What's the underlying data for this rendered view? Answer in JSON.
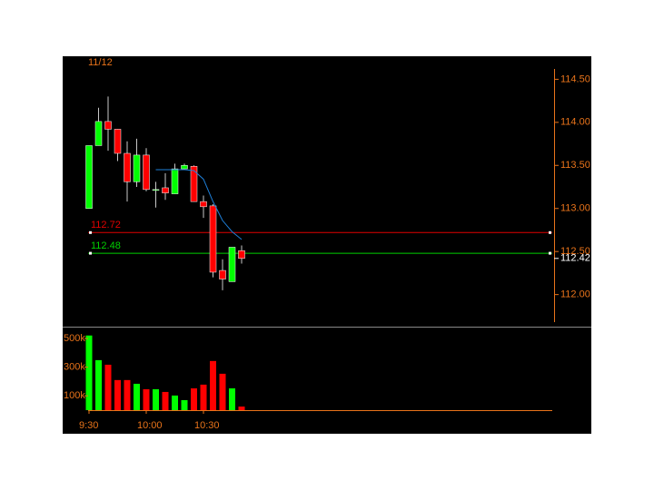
{
  "chart_data": [
    {
      "type": "candlestick",
      "date": "11/12",
      "open": [
        113.0,
        113.73,
        114.01,
        113.92,
        113.64,
        113.31,
        113.62,
        113.22,
        113.24,
        113.17,
        113.46,
        113.49,
        113.08,
        113.03,
        112.28,
        112.15,
        112.51
      ],
      "high": [
        113.73,
        114.17,
        114.3,
        113.92,
        113.78,
        113.81,
        113.7,
        113.31,
        113.41,
        113.52,
        113.52,
        113.5,
        113.15,
        113.05,
        112.41,
        112.55,
        112.57
      ],
      "low": [
        113.0,
        113.73,
        113.67,
        113.55,
        113.08,
        113.25,
        113.2,
        113.01,
        113.1,
        113.17,
        113.46,
        113.08,
        112.89,
        112.2,
        112.05,
        112.15,
        112.36
      ],
      "close": [
        113.73,
        114.01,
        113.92,
        113.64,
        113.31,
        113.62,
        113.22,
        113.22,
        113.18,
        113.46,
        113.5,
        113.08,
        113.02,
        112.26,
        112.18,
        112.55,
        112.42
      ],
      "up_color": "#00ff00",
      "down_color": "#ff0000",
      "moving_average": {
        "color": "#1e7fd8",
        "values": [
          null,
          null,
          null,
          null,
          null,
          null,
          null,
          113.45,
          113.45,
          113.45,
          113.45,
          113.44,
          113.34,
          113.08,
          112.86,
          112.73,
          112.64
        ]
      },
      "level_lines": [
        {
          "value": 112.72,
          "color": "#e00000"
        },
        {
          "value": 112.48,
          "color": "#00d000"
        }
      ],
      "last_price": 112.42,
      "ylim": [
        111.68,
        114.62
      ],
      "yticks": [
        {
          "value": 114.5,
          "label": "114.50"
        },
        {
          "value": 114.0,
          "label": "114.00"
        },
        {
          "value": 113.5,
          "label": "113.50"
        },
        {
          "value": 113.0,
          "label": "113.00"
        },
        {
          "value": 112.5,
          "label": "112.50"
        },
        {
          "value": 112.0,
          "label": "112.00"
        }
      ]
    },
    {
      "type": "bar",
      "categories": [
        "9:30",
        null,
        null,
        null,
        null,
        null,
        "10:00",
        null,
        null,
        null,
        null,
        null,
        "10:30",
        null,
        null,
        null,
        null
      ],
      "values": [
        521000,
        349000,
        317000,
        210000,
        210000,
        184000,
        146000,
        146000,
        127000,
        102000,
        70000,
        152000,
        178000,
        343000,
        254000,
        152000,
        25000
      ],
      "ylim": [
        0,
        570000
      ],
      "yticks": [
        {
          "value": 500000,
          "label": "500k"
        },
        {
          "value": 300000,
          "label": "300k"
        },
        {
          "value": 100000,
          "label": "100k"
        }
      ]
    }
  ]
}
